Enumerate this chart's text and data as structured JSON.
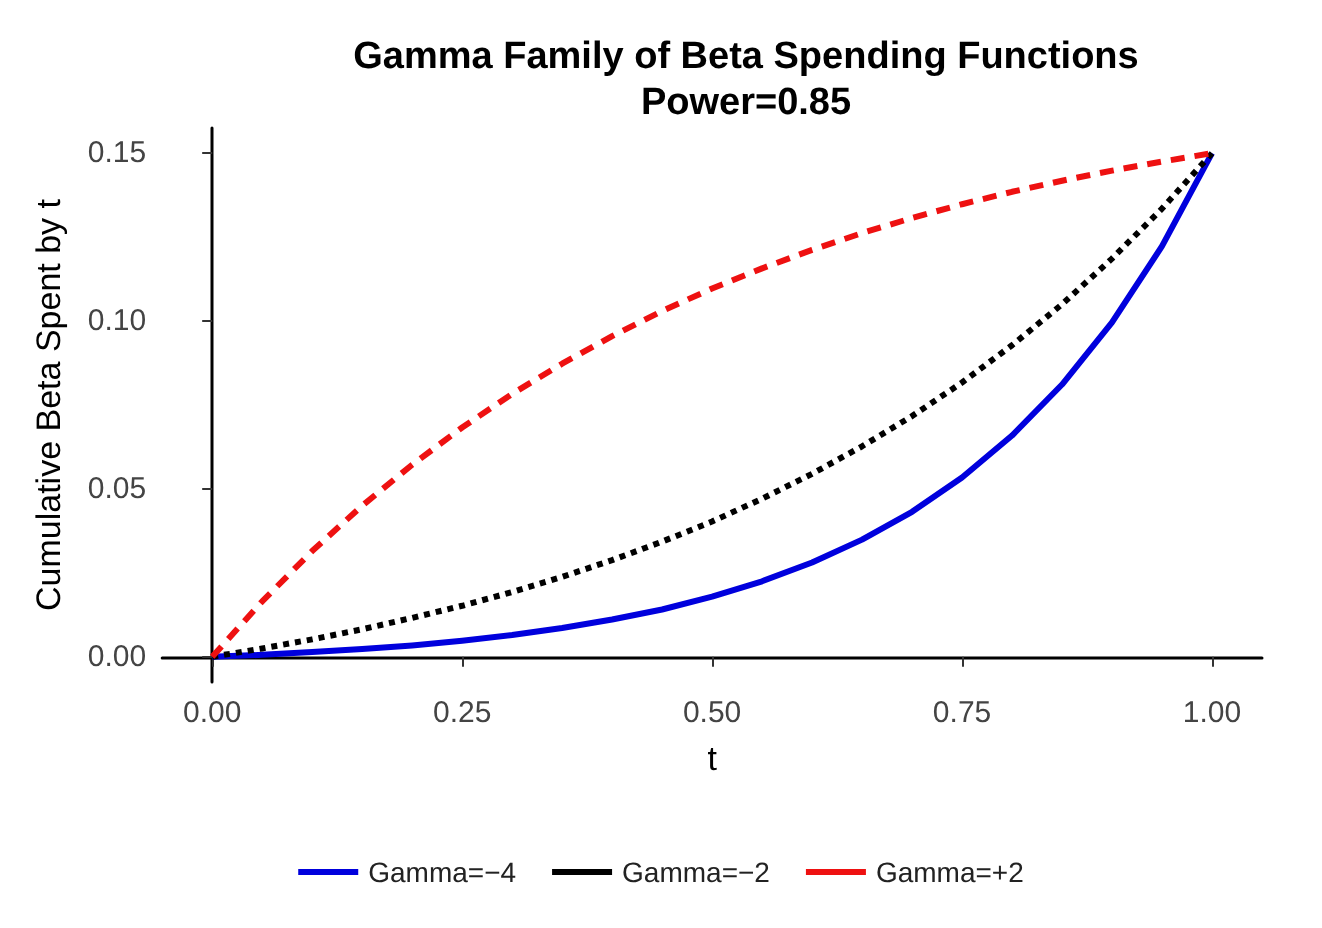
{
  "chart_data": {
    "type": "line",
    "title": "Gamma Family of Beta Spending Functions\nPower=0.85",
    "xlabel": "t",
    "ylabel": "Cumulative Beta Spent by t",
    "x": [
      0,
      0.05,
      0.1,
      0.15,
      0.2,
      0.25,
      0.3,
      0.35,
      0.4,
      0.45,
      0.5,
      0.55,
      0.6,
      0.65,
      0.7,
      0.75,
      0.8,
      0.85,
      0.9,
      0.95,
      1
    ],
    "series": [
      {
        "name": "Gamma=−4",
        "color": "#0000dd",
        "line_style": "solid",
        "values": [
          0,
          0.0006,
          0.0014,
          0.0023,
          0.0034,
          0.0048,
          0.0065,
          0.0086,
          0.0111,
          0.0141,
          0.0179,
          0.0225,
          0.0281,
          0.0349,
          0.0432,
          0.0534,
          0.0659,
          0.0811,
          0.0996,
          0.1223,
          0.15
        ]
      },
      {
        "name": "Gamma=−2",
        "color": "#000000",
        "line_style": "dotted",
        "values": [
          0,
          0.0025,
          0.0052,
          0.0082,
          0.0116,
          0.0152,
          0.0193,
          0.0238,
          0.0288,
          0.0343,
          0.0403,
          0.0471,
          0.0545,
          0.0627,
          0.0717,
          0.0817,
          0.0928,
          0.105,
          0.1186,
          0.1335,
          0.15
        ]
      },
      {
        "name": "Gamma=+2",
        "color": "#ee1111",
        "line_style": "dashed",
        "values": [
          0,
          0.0165,
          0.0315,
          0.045,
          0.0572,
          0.0683,
          0.0783,
          0.0873,
          0.0955,
          0.103,
          0.1097,
          0.1157,
          0.1212,
          0.1262,
          0.1307,
          0.1348,
          0.1385,
          0.1418,
          0.1448,
          0.1475,
          0.15
        ]
      }
    ],
    "xlim": [
      -0.05,
      1.05
    ],
    "xticks": [
      {
        "value": 0,
        "label": "0.00"
      },
      {
        "value": 0.25,
        "label": "0.25"
      },
      {
        "value": 0.5,
        "label": "0.50"
      },
      {
        "value": 0.75,
        "label": "0.75"
      },
      {
        "value": 1,
        "label": "1.00"
      }
    ],
    "ylim": [
      -0.0075,
      0.1575
    ],
    "yticks": [
      {
        "value": 0,
        "label": "0.00"
      },
      {
        "value": 0.05,
        "label": "0.05"
      },
      {
        "value": 0.1,
        "label": "0.10"
      },
      {
        "value": 0.15,
        "label": "0.15"
      }
    ],
    "grid": false,
    "legend": "bottom",
    "marker": "none"
  }
}
